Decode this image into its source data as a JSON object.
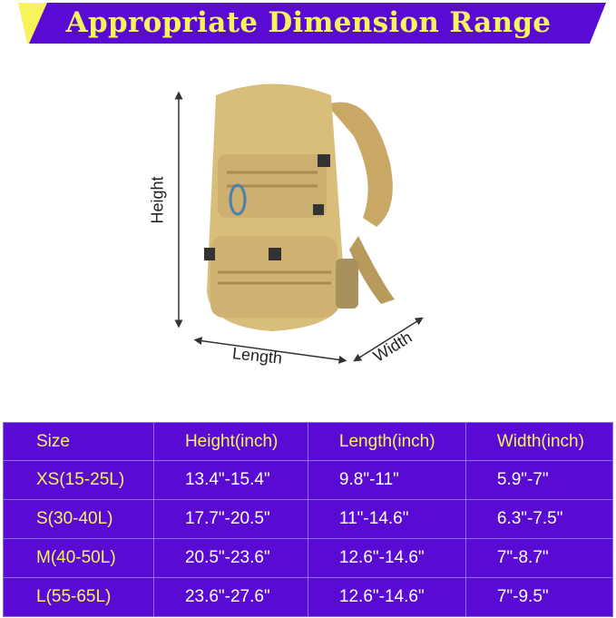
{
  "banner": {
    "title": "Appropriate Dimension Range",
    "colors": {
      "band": "#5a0bd3",
      "accent": "#f7f35a"
    }
  },
  "figure": {
    "height_label": "Height",
    "length_label": "Length",
    "width_label": "Width",
    "product_color": "#d9bd7a"
  },
  "table": {
    "headers": [
      "Size",
      "Height(inch)",
      "Length(inch)",
      "Width(inch)"
    ],
    "rows": [
      [
        "XS(15-25L)",
        "13.4\"-15.4\"",
        "9.8\"-11\"",
        "5.9\"-7\""
      ],
      [
        "S(30-40L)",
        "17.7\"-20.5\"",
        "11\"-14.6\"",
        "6.3\"-7.5\""
      ],
      [
        "M(40-50L)",
        "20.5\"-23.6\"",
        "12.6\"-14.6\"",
        "7\"-8.7\""
      ],
      [
        "L(55-65L)",
        "23.6\"-27.6\"",
        "12.6\"-14.6\"",
        "7\"-9.5\""
      ]
    ]
  }
}
